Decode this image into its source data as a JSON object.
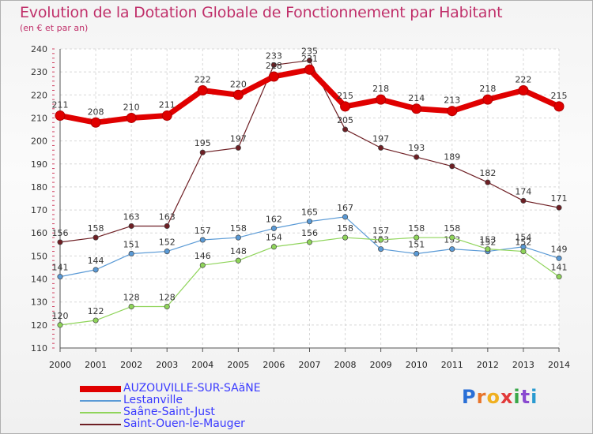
{
  "header": {
    "title": "Evolution de la Dotation Globale de Fonctionnement par Habitant",
    "subtitle": "(en € et par an)"
  },
  "logo": {
    "text": "Proxiti",
    "colors": [
      "#2a6fd6",
      "#e8742a",
      "#f0b020",
      "#e23a3a",
      "#3aa84a",
      "#8a4ad0",
      "#2a9ad0"
    ]
  },
  "chart_data": {
    "type": "line",
    "x": [
      "2000",
      "2001",
      "2002",
      "2003",
      "2004",
      "2005",
      "2006",
      "2007",
      "2008",
      "2009",
      "2010",
      "2011",
      "2012",
      "2013",
      "2014"
    ],
    "ylim": [
      110,
      240
    ],
    "yticks": [
      110,
      120,
      130,
      140,
      150,
      160,
      170,
      180,
      190,
      200,
      210,
      220,
      230,
      240
    ],
    "grid": true,
    "legend_position": "bottom-left",
    "series": [
      {
        "name": "AUZOUVILLE-SUR-SAäNE",
        "color": "#e00000",
        "width": "thick",
        "values": [
          211,
          208,
          210,
          211,
          222,
          220,
          228,
          231,
          215,
          218,
          214,
          213,
          218,
          222,
          215
        ]
      },
      {
        "name": "Lestanville",
        "color": "#5a9ad6",
        "width": "thin",
        "values": [
          141,
          144,
          151,
          152,
          157,
          158,
          162,
          165,
          167,
          153,
          151,
          153,
          152,
          154,
          149
        ]
      },
      {
        "name": "Saâne-Saint-Just",
        "color": "#8fd45a",
        "width": "thin",
        "values": [
          120,
          122,
          128,
          128,
          146,
          148,
          154,
          156,
          158,
          157,
          158,
          158,
          153,
          152,
          141
        ]
      },
      {
        "name": "Saint-Ouen-le-Mauger",
        "color": "#6e1f24",
        "width": "thin",
        "values": [
          156,
          158,
          163,
          163,
          195,
          197,
          233,
          235,
          205,
          197,
          193,
          189,
          182,
          174,
          171
        ]
      }
    ]
  }
}
